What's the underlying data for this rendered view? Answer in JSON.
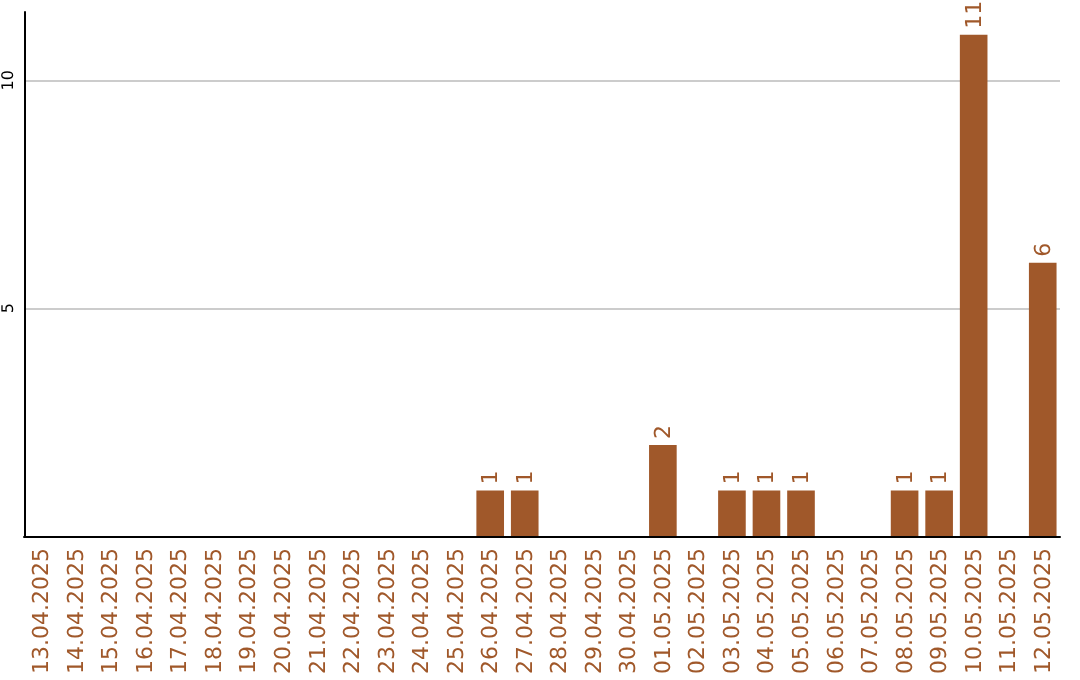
{
  "chart_data": {
    "type": "bar",
    "categories": [
      "13.04.2025",
      "14.04.2025",
      "15.04.2025",
      "16.04.2025",
      "17.04.2025",
      "18.04.2025",
      "19.04.2025",
      "20.04.2025",
      "21.04.2025",
      "22.04.2025",
      "23.04.2025",
      "24.04.2025",
      "25.04.2025",
      "26.04.2025",
      "27.04.2025",
      "28.04.2025",
      "29.04.2025",
      "30.04.2025",
      "01.05.2025",
      "02.05.2025",
      "03.05.2025",
      "04.05.2025",
      "05.05.2025",
      "06.05.2025",
      "07.05.2025",
      "08.05.2025",
      "09.05.2025",
      "10.05.2025",
      "11.05.2025",
      "12.05.2025"
    ],
    "values": [
      0,
      0,
      0,
      0,
      0,
      0,
      0,
      0,
      0,
      0,
      0,
      0,
      0,
      1,
      1,
      0,
      0,
      0,
      2,
      0,
      1,
      1,
      1,
      0,
      0,
      1,
      1,
      11,
      0,
      6
    ],
    "value_labels": [
      null,
      null,
      null,
      null,
      null,
      null,
      null,
      null,
      null,
      null,
      null,
      null,
      null,
      "1",
      "1",
      null,
      null,
      null,
      "2",
      null,
      "1",
      "1",
      "1",
      null,
      null,
      "1",
      "1",
      "11",
      null,
      "6"
    ],
    "color": "#a0582a",
    "ylim": [
      0,
      11.5
    ],
    "yticks": [
      5,
      10
    ],
    "grid": "y"
  }
}
